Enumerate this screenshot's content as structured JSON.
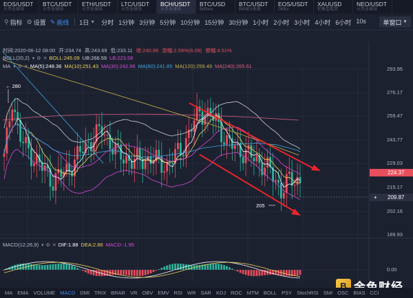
{
  "tabs": [
    {
      "symbol": "EOS/USDT",
      "exchange": "火币全球站"
    },
    {
      "symbol": "BTC/USDT",
      "exchange": "火币全球站"
    },
    {
      "symbol": "ETH/USDT",
      "exchange": "火币全球站"
    },
    {
      "symbol": "LTC/USDT",
      "exchange": "火币全球站"
    },
    {
      "symbol": "BCH/USDT",
      "exchange": "火币全球站"
    },
    {
      "symbol": "BTC/USD",
      "exchange": "Bitfinex"
    },
    {
      "symbol": "BTC/USDT",
      "exchange": "BitMEX永续"
    },
    {
      "symbol": "EOS/USDT",
      "exchange": "OKEx"
    },
    {
      "symbol": "XAUUSD",
      "exchange": "伦敦金现货"
    },
    {
      "symbol": "NEO/USDT",
      "exchange": "火币全球站"
    }
  ],
  "active_tab": 4,
  "toolbar": {
    "indicator": "指标",
    "settings": "设置",
    "draw": "画线",
    "period": "1日",
    "intervals": [
      "分时",
      "1分钟",
      "3分钟",
      "5分钟",
      "10分钟",
      "15分钟",
      "30分钟",
      "1小时",
      "2小时",
      "3小时",
      "4小时",
      "6小时",
      "10s"
    ],
    "window": "单窗口"
  },
  "ohlc": {
    "time": "时间:2020-06-12 08:00",
    "open": "开:234.74",
    "high": "高:243.69",
    "low": "低:233.11",
    "close": "收:240.86",
    "change": "涨幅:2.59%(6.09)",
    "amplitude": "振幅:4.51%"
  },
  "boll": {
    "name": "BOLL(20,2)",
    "boll": "BOLL:245.09",
    "ub": "UB:266.59",
    "lb": "LB:223.58"
  },
  "ma": {
    "name": "MA",
    "ma5": "MA(5):248.36",
    "ma10": "MA(10):251.43",
    "ma30": "MA(30):242.96",
    "ma60": "MA(60):241.85",
    "ma120": "MA(120):259.49",
    "ma240": "MA(240):265.61"
  },
  "macd": {
    "name": "MACD(12,26,9)",
    "dif": "DIF:1.88",
    "dea": "DEA:2.86",
    "macd": "MACD:-1.95"
  },
  "price_axis": [
    "293.95",
    "276.17",
    "259.47",
    "243.77",
    "229.03",
    "215.17",
    "202.16",
    "189.93"
  ],
  "current_price": "224.37",
  "cursor_price": "209.87",
  "macd_axis": [
    "0.00"
  ],
  "annotations": {
    "high_label": "← 280",
    "low_label": "205"
  },
  "bottom_tabs": [
    "MA",
    "EMA",
    "VOLUME",
    "MACD",
    "DMI",
    "TRIX",
    "BRAR",
    "VR",
    "OBV",
    "EMV",
    "RSI",
    "WR",
    "SAR",
    "KDJ",
    "ROC",
    "MTM",
    "BOLL",
    "PSY",
    "StochRSI",
    "SMI",
    "OSC",
    "BIAS",
    "CCI"
  ],
  "bottom_active": "MACD",
  "logo_text": "金色财经",
  "colors": {
    "up": "#e84e5c",
    "down": "#2bb39a",
    "accent": "#3c8bf0",
    "trendline": "#e8252b"
  }
}
